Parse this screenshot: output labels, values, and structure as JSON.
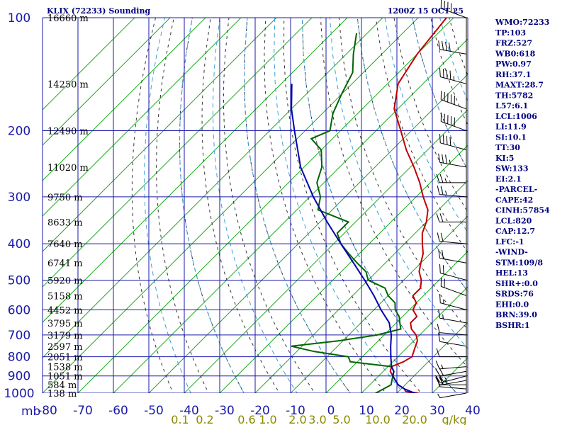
{
  "header": {
    "station": "KLIX (72233) Sounding",
    "time": "1200Z 15 OCT 25"
  },
  "chart_data": {
    "type": "skew-t",
    "y_unit": "mb",
    "pressure_ticks": [
      100,
      200,
      300,
      400,
      500,
      600,
      700,
      800,
      900,
      1000
    ],
    "temp_ticks": [
      -80,
      -70,
      -60,
      -50,
      -40,
      -30,
      -20,
      -10,
      0,
      10,
      20,
      30,
      40
    ],
    "temp_tick_labels": [
      "-80",
      "-70",
      "-60",
      "-50",
      "-40",
      "-30",
      "-20",
      "-10",
      "0",
      "10",
      "20",
      "30",
      "40"
    ],
    "mixing_ratio_labels": [
      "0.1",
      "0.2",
      "0.6",
      "1.0",
      "2.0",
      "3.0",
      "5.0",
      "10.0",
      "20.0",
      "g/kg"
    ],
    "height_labels": [
      {
        "p": 100,
        "label": "16660 m"
      },
      {
        "p": 150,
        "label": "14250 m"
      },
      {
        "p": 200,
        "label": "12490 m"
      },
      {
        "p": 250,
        "label": "11020 m"
      },
      {
        "p": 300,
        "label": "9750 m"
      },
      {
        "p": 350,
        "label": "8633 m"
      },
      {
        "p": 400,
        "label": "7640 m"
      },
      {
        "p": 450,
        "label": "6741 m"
      },
      {
        "p": 500,
        "label": "5920 m"
      },
      {
        "p": 550,
        "label": "5158 m"
      },
      {
        "p": 600,
        "label": "4452 m"
      },
      {
        "p": 650,
        "label": "3795 m"
      },
      {
        "p": 700,
        "label": "3179 m"
      },
      {
        "p": 750,
        "label": "2597 m"
      },
      {
        "p": 800,
        "label": "2051 m"
      },
      {
        "p": 850,
        "label": "1538 m"
      },
      {
        "p": 900,
        "label": "1051 m"
      },
      {
        "p": 950,
        "label": "584 m"
      },
      {
        "p": 1000,
        "label": "138 m"
      }
    ],
    "series": [
      {
        "kind": "temperature",
        "color": "#c00000",
        "points": [
          [
            1010,
            25
          ],
          [
            1000,
            26
          ],
          [
            990,
            22
          ],
          [
            975,
            21
          ],
          [
            950,
            18
          ],
          [
            925,
            16
          ],
          [
            900,
            14
          ],
          [
            875,
            12
          ],
          [
            850,
            11
          ],
          [
            825,
            13
          ],
          [
            800,
            14
          ],
          [
            775,
            13
          ],
          [
            750,
            12
          ],
          [
            725,
            11
          ],
          [
            700,
            9
          ],
          [
            675,
            6
          ],
          [
            650,
            4
          ],
          [
            625,
            4
          ],
          [
            600,
            1
          ],
          [
            575,
            0
          ],
          [
            550,
            -3
          ],
          [
            525,
            -3
          ],
          [
            500,
            -5
          ],
          [
            475,
            -8
          ],
          [
            450,
            -10
          ],
          [
            425,
            -12
          ],
          [
            400,
            -15
          ],
          [
            375,
            -18
          ],
          [
            350,
            -20
          ],
          [
            325,
            -23
          ],
          [
            300,
            -28
          ],
          [
            275,
            -33
          ],
          [
            250,
            -39
          ],
          [
            225,
            -46
          ],
          [
            200,
            -53
          ],
          [
            175,
            -61
          ],
          [
            150,
            -67
          ],
          [
            125,
            -70
          ],
          [
            100,
            -72
          ]
        ]
      },
      {
        "kind": "dewpoint",
        "color": "#006400",
        "points": [
          [
            1010,
            16
          ],
          [
            1000,
            14
          ],
          [
            975,
            15
          ],
          [
            950,
            16
          ],
          [
            925,
            15
          ],
          [
            900,
            14
          ],
          [
            875,
            13
          ],
          [
            850,
            11
          ],
          [
            825,
            -2
          ],
          [
            800,
            -4
          ],
          [
            775,
            -15
          ],
          [
            750,
            -23
          ],
          [
            725,
            -11
          ],
          [
            700,
            -2
          ],
          [
            675,
            3
          ],
          [
            650,
            1
          ],
          [
            625,
            -1
          ],
          [
            600,
            -4
          ],
          [
            575,
            -6
          ],
          [
            550,
            -10
          ],
          [
            525,
            -13
          ],
          [
            500,
            -20
          ],
          [
            475,
            -23
          ],
          [
            450,
            -28
          ],
          [
            425,
            -33
          ],
          [
            400,
            -38
          ],
          [
            375,
            -42
          ],
          [
            350,
            -42
          ],
          [
            325,
            -54
          ],
          [
            300,
            -57
          ],
          [
            275,
            -62
          ],
          [
            250,
            -65
          ],
          [
            225,
            -70
          ],
          [
            210,
            -76
          ],
          [
            200,
            -73
          ],
          [
            180,
            -77
          ],
          [
            160,
            -80
          ],
          [
            140,
            -83
          ],
          [
            125,
            -88
          ],
          [
            110,
            -93
          ]
        ]
      },
      {
        "kind": "parcel",
        "color": "#0000b0",
        "points": [
          [
            1010,
            26
          ],
          [
            1000,
            25
          ],
          [
            975,
            21
          ],
          [
            950,
            18
          ],
          [
            925,
            16
          ],
          [
            900,
            14
          ],
          [
            875,
            13
          ],
          [
            850,
            11
          ],
          [
            800,
            8
          ],
          [
            750,
            5
          ],
          [
            700,
            2
          ],
          [
            650,
            -2
          ],
          [
            600,
            -8
          ],
          [
            550,
            -14
          ],
          [
            500,
            -21
          ],
          [
            450,
            -29
          ],
          [
            400,
            -38
          ],
          [
            350,
            -48
          ],
          [
            300,
            -59
          ],
          [
            250,
            -71
          ],
          [
            200,
            -83
          ],
          [
            175,
            -90
          ],
          [
            150,
            -97
          ]
        ]
      }
    ],
    "wind_barbs": [
      {
        "p": 100,
        "dir": 290,
        "spd": 45
      },
      {
        "p": 125,
        "dir": 280,
        "spd": 40
      },
      {
        "p": 150,
        "dir": 285,
        "spd": 45
      },
      {
        "p": 175,
        "dir": 290,
        "spd": 50
      },
      {
        "p": 200,
        "dir": 290,
        "spd": 50
      },
      {
        "p": 225,
        "dir": 285,
        "spd": 40
      },
      {
        "p": 250,
        "dir": 280,
        "spd": 35
      },
      {
        "p": 275,
        "dir": 270,
        "spd": 25
      },
      {
        "p": 300,
        "dir": 275,
        "spd": 25
      },
      {
        "p": 350,
        "dir": 270,
        "spd": 20
      },
      {
        "p": 400,
        "dir": 275,
        "spd": 20
      },
      {
        "p": 450,
        "dir": 280,
        "spd": 20
      },
      {
        "p": 500,
        "dir": 285,
        "spd": 20
      },
      {
        "p": 550,
        "dir": 290,
        "spd": 20
      },
      {
        "p": 600,
        "dir": 285,
        "spd": 15
      },
      {
        "p": 650,
        "dir": 280,
        "spd": 15
      },
      {
        "p": 700,
        "dir": 275,
        "spd": 10
      },
      {
        "p": 750,
        "dir": 280,
        "spd": 10
      },
      {
        "p": 800,
        "dir": 270,
        "spd": 10
      },
      {
        "p": 850,
        "dir": 265,
        "spd": 15
      },
      {
        "p": 875,
        "dir": 260,
        "spd": 20
      },
      {
        "p": 900,
        "dir": 255,
        "spd": 25
      },
      {
        "p": 925,
        "dir": 260,
        "spd": 25
      },
      {
        "p": 950,
        "dir": 270,
        "spd": 20
      },
      {
        "p": 975,
        "dir": 275,
        "spd": 10
      },
      {
        "p": 1000,
        "dir": 260,
        "spd": 5
      }
    ]
  },
  "indices": [
    "WMO:72233",
    "TP:103",
    "FRZ:527",
    "WB0:618",
    "PW:0.97",
    "RH:37.1",
    "MAXT:28.7",
    "TH:5782",
    "L57:6.1",
    "LCL:1006",
    "LI:11.9",
    "SI:10.1",
    "TT:30",
    "KI:5",
    "SW:133",
    "EI:2.1",
    "-PARCEL-",
    "CAPE:42",
    "CINH:57854",
    "LCL:820",
    "CAP:12.7",
    "LFC:-1",
    "-WIND-",
    "STM:109/8",
    "HEL:13",
    "SHR+:0.0",
    "SRDS:76",
    "EHI:0.0",
    "BRN:39.0",
    "BSHR:1"
  ]
}
